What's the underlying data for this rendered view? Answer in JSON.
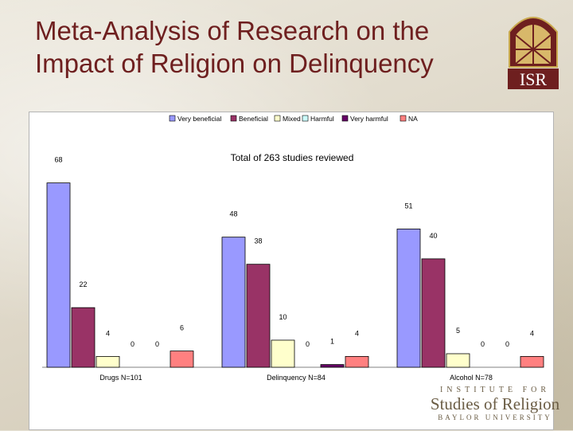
{
  "slide": {
    "title": "Meta-Analysis of Research on the Impact of Religion on Delinquency"
  },
  "logo": {
    "text": "ISR",
    "footer_line1": "INSTITUTE FOR",
    "footer_line2": "Studies of Religion",
    "footer_line3": "BAYLOR UNIVERSITY"
  },
  "colors": {
    "title": "#6e1f1f",
    "series": [
      "#9999ff",
      "#993366",
      "#ffffcc",
      "#ccffff",
      "#660066",
      "#ff8080"
    ]
  },
  "chart_data": {
    "type": "bar",
    "title": "Total of 263 studies reviewed",
    "categories": [
      "Drugs N=101",
      "Delinquency N=84",
      "Alcohol N=78"
    ],
    "series": [
      {
        "name": "Very beneficial",
        "values": [
          68,
          48,
          51
        ]
      },
      {
        "name": "Beneficial",
        "values": [
          22,
          38,
          40
        ]
      },
      {
        "name": "Mixed",
        "values": [
          4,
          10,
          5
        ]
      },
      {
        "name": "Harmful",
        "values": [
          0,
          0,
          0
        ]
      },
      {
        "name": "Very harmful",
        "values": [
          0,
          1,
          0
        ]
      },
      {
        "name": "NA",
        "values": [
          6,
          4,
          4
        ]
      }
    ],
    "ylim": [
      0,
      72
    ],
    "grid": false,
    "legend": "top-center"
  }
}
